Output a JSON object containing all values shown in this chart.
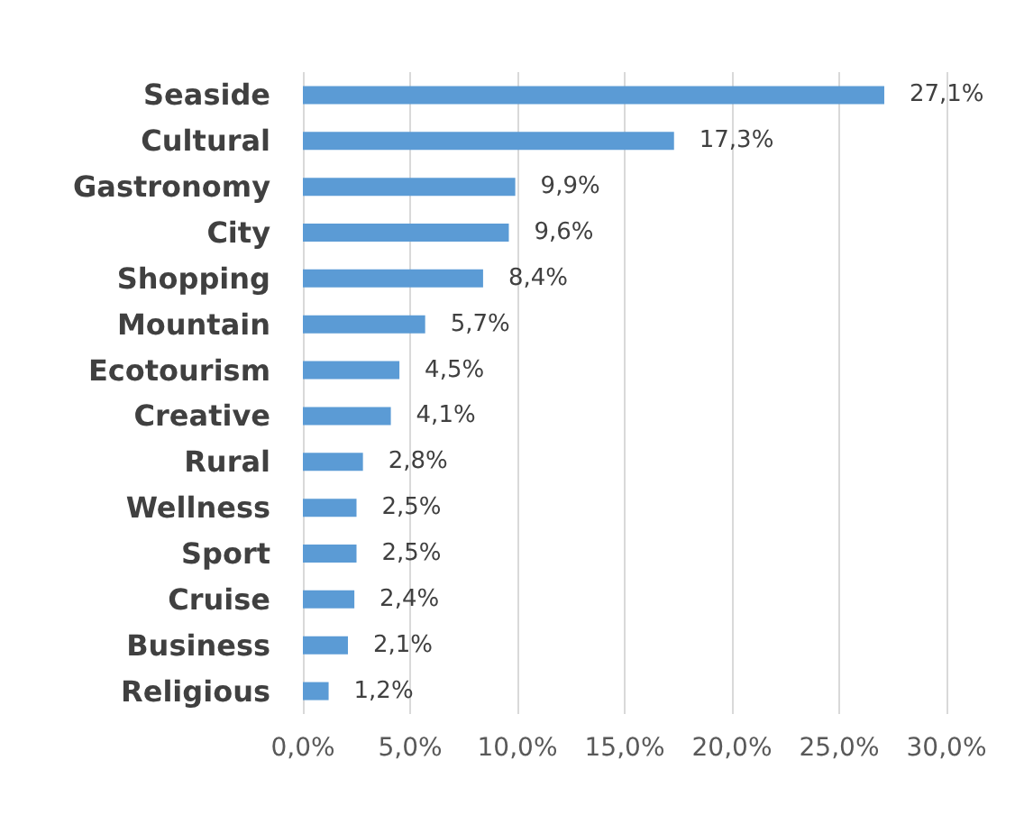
{
  "chart_data": {
    "type": "bar",
    "orientation": "horizontal",
    "categories": [
      "Seaside",
      "Cultural",
      "Gastronomy",
      "City",
      "Shopping",
      "Mountain",
      "Ecotourism",
      "Creative",
      "Rural",
      "Wellness",
      "Sport",
      "Cruise",
      "Business",
      "Religious"
    ],
    "values": [
      27.1,
      17.3,
      9.9,
      9.6,
      8.4,
      5.7,
      4.5,
      4.1,
      2.8,
      2.5,
      2.5,
      2.4,
      2.1,
      1.2
    ],
    "value_labels": [
      "27,1%",
      "17,3%",
      "9,9%",
      "9,6%",
      "8,4%",
      "5,7%",
      "4,5%",
      "4,1%",
      "2,8%",
      "2,5%",
      "2,5%",
      "2,4%",
      "2,1%",
      "1,2%"
    ],
    "color": "#5b9bd5",
    "xlim": [
      0,
      30
    ],
    "xticks": [
      {
        "value": 0,
        "label": "0,0%"
      },
      {
        "value": 5,
        "label": "5,0%"
      },
      {
        "value": 10,
        "label": "10,0%"
      },
      {
        "value": 15,
        "label": "15,0%"
      },
      {
        "value": 20,
        "label": "20,0%"
      },
      {
        "value": 25,
        "label": "25,0%"
      },
      {
        "value": 30,
        "label": "30,0%"
      }
    ],
    "grid": "x"
  }
}
